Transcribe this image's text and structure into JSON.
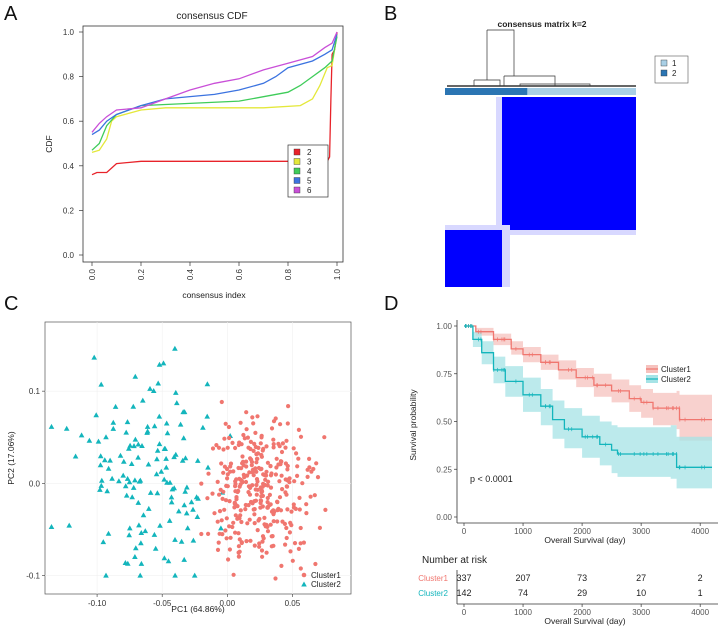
{
  "panels": {
    "a": "A",
    "b": "B",
    "c": "C",
    "d": "D"
  },
  "chart_data": [
    {
      "id": "A",
      "type": "line",
      "title": "consensus CDF",
      "xlabel": "consensus index",
      "ylabel": "CDF",
      "xlim": [
        0,
        1
      ],
      "ylim": [
        0,
        1
      ],
      "xticks": [
        "0.0",
        "0.2",
        "0.4",
        "0.6",
        "0.8",
        "1.0"
      ],
      "yticks": [
        "0.0",
        "0.2",
        "0.4",
        "0.6",
        "0.8",
        "1.0"
      ],
      "legend_position": "right",
      "series": [
        {
          "name": "2",
          "color": "#e8232a",
          "points": [
            [
              0,
              0.36
            ],
            [
              0.02,
              0.37
            ],
            [
              0.06,
              0.37
            ],
            [
              0.1,
              0.41
            ],
            [
              0.2,
              0.42
            ],
            [
              0.4,
              0.42
            ],
            [
              0.6,
              0.42
            ],
            [
              0.8,
              0.42
            ],
            [
              0.9,
              0.42
            ],
            [
              0.96,
              0.42
            ],
            [
              0.97,
              0.44
            ],
            [
              0.975,
              0.7
            ],
            [
              0.98,
              0.9
            ],
            [
              0.99,
              0.92
            ],
            [
              1.0,
              1.0
            ]
          ]
        },
        {
          "name": "3",
          "color": "#e4e83a",
          "points": [
            [
              0,
              0.46
            ],
            [
              0.03,
              0.47
            ],
            [
              0.06,
              0.52
            ],
            [
              0.08,
              0.6
            ],
            [
              0.1,
              0.62
            ],
            [
              0.2,
              0.65
            ],
            [
              0.3,
              0.66
            ],
            [
              0.5,
              0.66
            ],
            [
              0.7,
              0.66
            ],
            [
              0.85,
              0.67
            ],
            [
              0.9,
              0.7
            ],
            [
              0.93,
              0.76
            ],
            [
              0.96,
              0.84
            ],
            [
              0.98,
              0.85
            ],
            [
              1.0,
              0.99
            ]
          ]
        },
        {
          "name": "4",
          "color": "#3fcc5a",
          "points": [
            [
              0,
              0.47
            ],
            [
              0.03,
              0.5
            ],
            [
              0.06,
              0.58
            ],
            [
              0.1,
              0.63
            ],
            [
              0.2,
              0.67
            ],
            [
              0.4,
              0.68
            ],
            [
              0.6,
              0.69
            ],
            [
              0.7,
              0.71
            ],
            [
              0.8,
              0.73
            ],
            [
              0.85,
              0.76
            ],
            [
              0.9,
              0.8
            ],
            [
              0.95,
              0.84
            ],
            [
              0.98,
              0.87
            ],
            [
              1.0,
              0.98
            ]
          ]
        },
        {
          "name": "5",
          "color": "#3b73e0",
          "points": [
            [
              0,
              0.54
            ],
            [
              0.03,
              0.56
            ],
            [
              0.06,
              0.6
            ],
            [
              0.1,
              0.63
            ],
            [
              0.2,
              0.67
            ],
            [
              0.3,
              0.7
            ],
            [
              0.5,
              0.72
            ],
            [
              0.6,
              0.74
            ],
            [
              0.7,
              0.77
            ],
            [
              0.75,
              0.8
            ],
            [
              0.8,
              0.84
            ],
            [
              0.9,
              0.87
            ],
            [
              0.95,
              0.9
            ],
            [
              0.98,
              0.92
            ],
            [
              1.0,
              0.99
            ]
          ]
        },
        {
          "name": "6",
          "color": "#c94fd8",
          "points": [
            [
              0,
              0.55
            ],
            [
              0.03,
              0.59
            ],
            [
              0.06,
              0.62
            ],
            [
              0.1,
              0.65
            ],
            [
              0.2,
              0.66
            ],
            [
              0.3,
              0.7
            ],
            [
              0.4,
              0.74
            ],
            [
              0.5,
              0.77
            ],
            [
              0.6,
              0.79
            ],
            [
              0.7,
              0.83
            ],
            [
              0.8,
              0.86
            ],
            [
              0.9,
              0.89
            ],
            [
              0.95,
              0.93
            ],
            [
              0.98,
              0.95
            ],
            [
              1.0,
              1.0
            ]
          ]
        }
      ]
    },
    {
      "id": "B",
      "type": "heatmap",
      "title": "consensus matrix k=2",
      "legend": [
        {
          "name": "1",
          "color": "#a9cfe5"
        },
        {
          "name": "2",
          "color": "#2b75b3"
        }
      ],
      "cluster_fractions": [
        0.29,
        0.71
      ],
      "high_color": "#0000ff",
      "low_color": "#ffffff"
    },
    {
      "id": "C",
      "type": "scatter",
      "xlabel": "PC1 (64.86%)",
      "ylabel": "PC2 (17.06%)",
      "xlim": [
        -0.14,
        0.095
      ],
      "ylim": [
        -0.12,
        0.175
      ],
      "xticks": [
        -0.1,
        -0.05,
        0.0,
        0.05
      ],
      "xtick_labels": [
        "-0.10",
        "-0.05",
        "0.00",
        "0.05"
      ],
      "yticks": [
        -0.1,
        0.0,
        0.1
      ],
      "ytick_labels": [
        "-0.1",
        "0.0",
        "0.1"
      ],
      "legend_position": "bottom-right",
      "series": [
        {
          "name": "Cluster1",
          "color": "#f0766f",
          "marker": "circle",
          "count": 337,
          "x_range": [
            -0.02,
            0.09
          ],
          "y_range": [
            -0.11,
            0.17
          ]
        },
        {
          "name": "Cluster2",
          "color": "#13b5bc",
          "marker": "triangle",
          "count": 142,
          "x_range": [
            -0.135,
            0.01
          ],
          "y_range": [
            -0.1,
            0.17
          ]
        }
      ]
    },
    {
      "id": "D",
      "type": "line",
      "xlabel": "Overall Survival (day)",
      "ylabel": "Survival probability",
      "xlim": [
        0,
        4200
      ],
      "ylim": [
        0,
        1
      ],
      "xticks": [
        "0",
        "1000",
        "2000",
        "3000",
        "4000"
      ],
      "yticks": [
        "0.00",
        "0.25",
        "0.50",
        "0.75",
        "1.00"
      ],
      "annotation": "p < 0.0001",
      "legend_position": "right",
      "series": [
        {
          "name": "Cluster1",
          "color": "#f0766f",
          "band_color": "#f6c2be",
          "points": [
            [
              0,
              1
            ],
            [
              200,
              0.97
            ],
            [
              500,
              0.93
            ],
            [
              800,
              0.88
            ],
            [
              1000,
              0.85
            ],
            [
              1300,
              0.81
            ],
            [
              1600,
              0.77
            ],
            [
              1900,
              0.73
            ],
            [
              2200,
              0.69
            ],
            [
              2500,
              0.66
            ],
            [
              2800,
              0.62
            ],
            [
              3000,
              0.6
            ],
            [
              3200,
              0.57
            ],
            [
              3600,
              0.57
            ],
            [
              3650,
              0.51
            ],
            [
              4200,
              0.51
            ]
          ],
          "lower": [
            [
              0,
              1
            ],
            [
              200,
              0.95
            ],
            [
              500,
              0.9
            ],
            [
              800,
              0.85
            ],
            [
              1000,
              0.81
            ],
            [
              1300,
              0.77
            ],
            [
              1600,
              0.72
            ],
            [
              1900,
              0.68
            ],
            [
              2200,
              0.63
            ],
            [
              2500,
              0.6
            ],
            [
              2800,
              0.55
            ],
            [
              3000,
              0.52
            ],
            [
              3200,
              0.48
            ],
            [
              3600,
              0.46
            ],
            [
              3650,
              0.4
            ],
            [
              4200,
              0.4
            ]
          ],
          "upper": [
            [
              0,
              1
            ],
            [
              200,
              0.99
            ],
            [
              500,
              0.96
            ],
            [
              800,
              0.92
            ],
            [
              1000,
              0.89
            ],
            [
              1300,
              0.85
            ],
            [
              1600,
              0.82
            ],
            [
              1900,
              0.78
            ],
            [
              2200,
              0.75
            ],
            [
              2500,
              0.72
            ],
            [
              2800,
              0.69
            ],
            [
              3000,
              0.67
            ],
            [
              3200,
              0.65
            ],
            [
              3600,
              0.66
            ],
            [
              3650,
              0.64
            ],
            [
              4200,
              0.64
            ]
          ]
        },
        {
          "name": "Cluster2",
          "color": "#13b5bc",
          "band_color": "#a6e3e6",
          "points": [
            [
              0,
              1
            ],
            [
              150,
              0.93
            ],
            [
              300,
              0.86
            ],
            [
              500,
              0.77
            ],
            [
              700,
              0.71
            ],
            [
              1000,
              0.64
            ],
            [
              1300,
              0.58
            ],
            [
              1500,
              0.51
            ],
            [
              1700,
              0.46
            ],
            [
              2000,
              0.42
            ],
            [
              2300,
              0.38
            ],
            [
              2500,
              0.35
            ],
            [
              2600,
              0.33
            ],
            [
              3500,
              0.33
            ],
            [
              3600,
              0.26
            ],
            [
              4200,
              0.26
            ]
          ],
          "lower": [
            [
              0,
              1
            ],
            [
              150,
              0.89
            ],
            [
              300,
              0.8
            ],
            [
              500,
              0.7
            ],
            [
              700,
              0.63
            ],
            [
              1000,
              0.55
            ],
            [
              1300,
              0.48
            ],
            [
              1500,
              0.41
            ],
            [
              1700,
              0.36
            ],
            [
              2000,
              0.31
            ],
            [
              2300,
              0.27
            ],
            [
              2500,
              0.23
            ],
            [
              2600,
              0.21
            ],
            [
              3500,
              0.2
            ],
            [
              3600,
              0.15
            ],
            [
              4200,
              0.15
            ]
          ],
          "upper": [
            [
              0,
              1
            ],
            [
              150,
              0.97
            ],
            [
              300,
              0.92
            ],
            [
              500,
              0.84
            ],
            [
              700,
              0.79
            ],
            [
              1000,
              0.73
            ],
            [
              1300,
              0.67
            ],
            [
              1500,
              0.61
            ],
            [
              1700,
              0.57
            ],
            [
              2000,
              0.53
            ],
            [
              2300,
              0.5
            ],
            [
              2500,
              0.48
            ],
            [
              2600,
              0.47
            ],
            [
              3500,
              0.48
            ],
            [
              3600,
              0.42
            ],
            [
              4200,
              0.42
            ]
          ]
        }
      ],
      "risk_table": {
        "title": "Number at risk",
        "times": [
          0,
          1000,
          2000,
          3000,
          4000
        ],
        "rows": [
          {
            "name": "Cluster1",
            "color": "#f0766f",
            "values": [
              337,
              207,
              73,
              27,
              2
            ]
          },
          {
            "name": "Cluster2",
            "color": "#13b5bc",
            "values": [
              142,
              74,
              29,
              10,
              1
            ]
          }
        ],
        "xlabel": "Overall Survival (day)",
        "xticks": [
          "0",
          "1000",
          "2000",
          "3000",
          "4000"
        ]
      }
    }
  ]
}
